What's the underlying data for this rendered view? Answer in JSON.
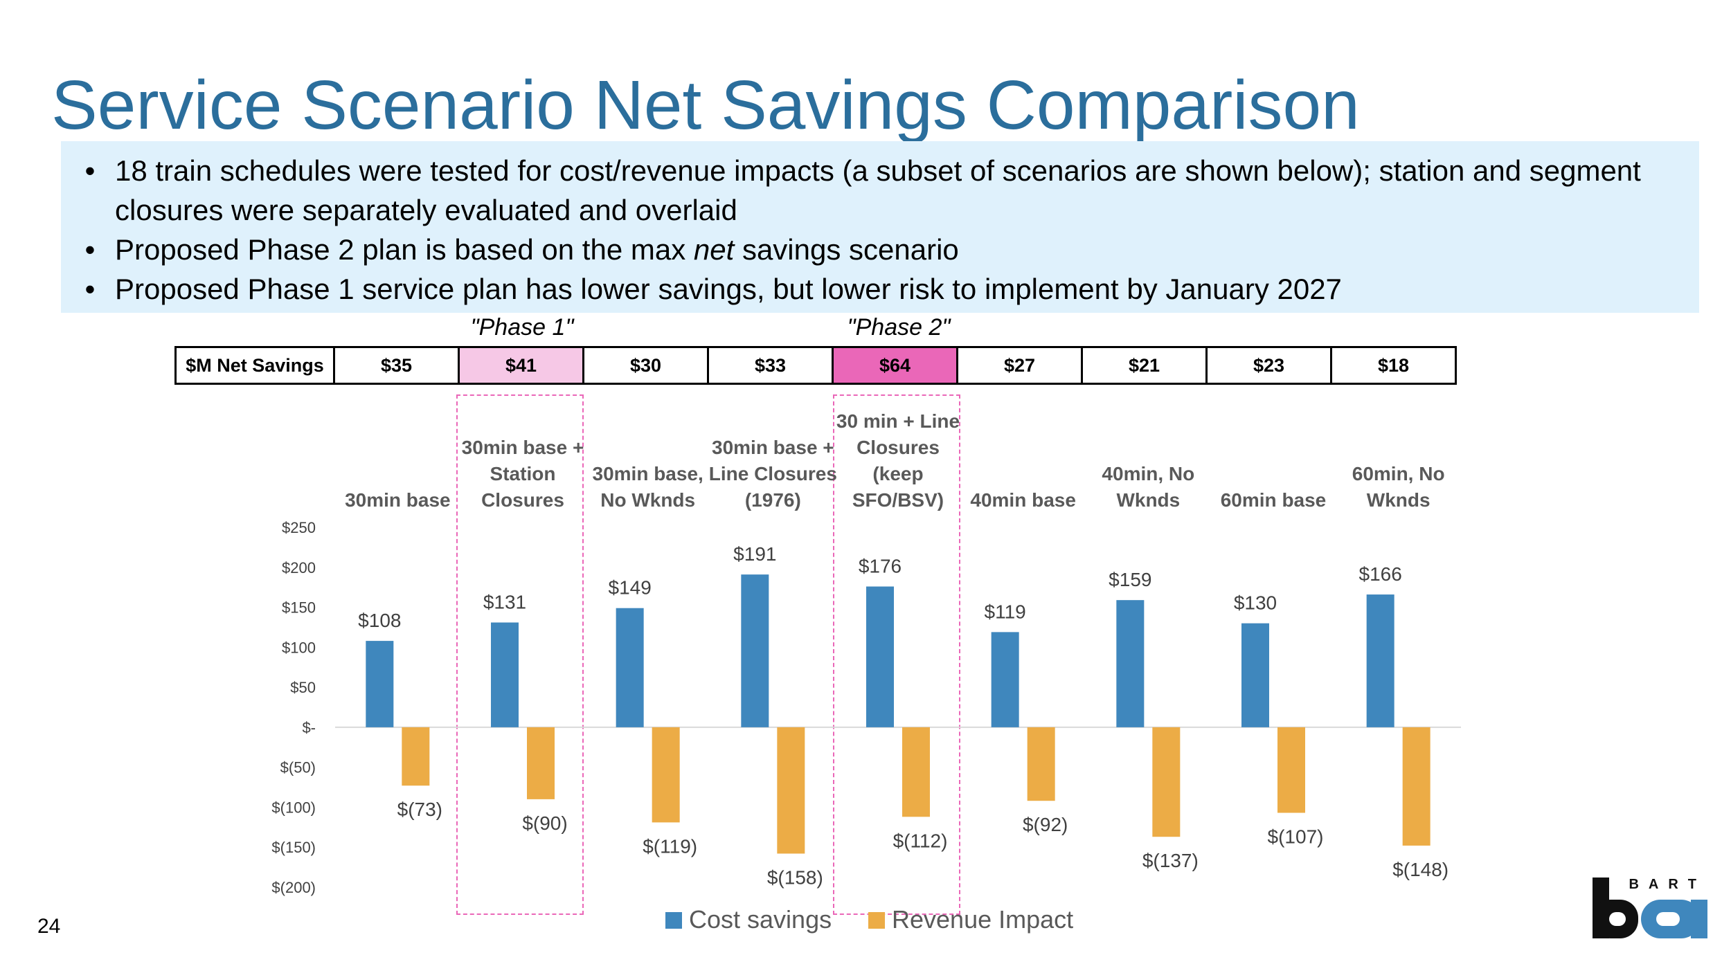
{
  "page": {
    "title": "Service Scenario Net Savings Comparison",
    "page_number": "24"
  },
  "bullets": [
    {
      "marker": "•",
      "parts": [
        {
          "text": "18 train schedules were tested for cost/revenue impacts (a subset of scenarios are shown below); station and segment closures were separately evaluated and overlaid",
          "italic": false
        }
      ]
    },
    {
      "marker": "•",
      "parts": [
        {
          "text": "Proposed Phase 2 plan is based on the max ",
          "italic": false
        },
        {
          "text": "net",
          "italic": true
        },
        {
          "text": " savings scenario",
          "italic": false
        }
      ]
    },
    {
      "marker": "•",
      "parts": [
        {
          "text": "Proposed Phase 1 service plan has lower savings, but lower risk to implement by January 2027",
          "italic": false
        }
      ]
    }
  ],
  "phase_labels": {
    "phase1": "\"Phase 1\"",
    "phase2": "\"Phase 2\""
  },
  "savings_table": {
    "header": "$M Net Savings",
    "values": [
      "$35",
      "$41",
      "$30",
      "$33",
      "$64",
      "$27",
      "$21",
      "$23",
      "$18"
    ],
    "highlight_colors": {
      "phase1": "#f6c8e6",
      "phase2": "#ea67b8"
    }
  },
  "colors": {
    "cost": "#3f87bd",
    "revenue": "#ecac46",
    "title": "#2b6e9c",
    "band": "#dff1fc",
    "dash": "#ea67b8"
  },
  "legend": {
    "cost": "Cost savings",
    "revenue": "Revenue Impact"
  },
  "logo": {
    "text": "BART"
  },
  "chart_data": {
    "type": "bar",
    "title": "",
    "xlabel": "",
    "ylabel": "",
    "ylim": [
      -200,
      250
    ],
    "yticks": [
      250,
      200,
      150,
      100,
      50,
      0,
      -50,
      -100,
      -150,
      -200
    ],
    "ytick_labels": [
      "$250",
      "$200",
      "$150",
      "$100",
      "$50",
      "$-",
      "$(50)",
      "$(100)",
      "$(150)",
      "$(200)"
    ],
    "categories": [
      [
        "30min base"
      ],
      [
        "30min base +",
        "Station",
        "Closures"
      ],
      [
        "30min base,",
        "No Wknds"
      ],
      [
        "30min base +",
        "Line Closures",
        "(1976)"
      ],
      [
        "30 min + Line",
        "Closures",
        "(keep",
        "SFO/BSV)"
      ],
      [
        "40min base"
      ],
      [
        "40min, No",
        "Wknds"
      ],
      [
        "60min base"
      ],
      [
        "60min, No",
        "Wknds"
      ]
    ],
    "series": [
      {
        "name": "Cost savings",
        "values": [
          108,
          131,
          149,
          191,
          176,
          119,
          159,
          130,
          166
        ],
        "labels": [
          "$108",
          "$131",
          "$149",
          "$191",
          "$176",
          "$119",
          "$159",
          "$130",
          "$166"
        ]
      },
      {
        "name": "Revenue Impact",
        "values": [
          -73,
          -90,
          -119,
          -158,
          -112,
          -92,
          -137,
          -107,
          -148
        ],
        "labels": [
          "$(73)",
          "$(90)",
          "$(119)",
          "$(158)",
          "$(112)",
          "$(92)",
          "$(137)",
          "$(107)",
          "$(148)"
        ]
      }
    ],
    "legend_position": "bottom"
  }
}
